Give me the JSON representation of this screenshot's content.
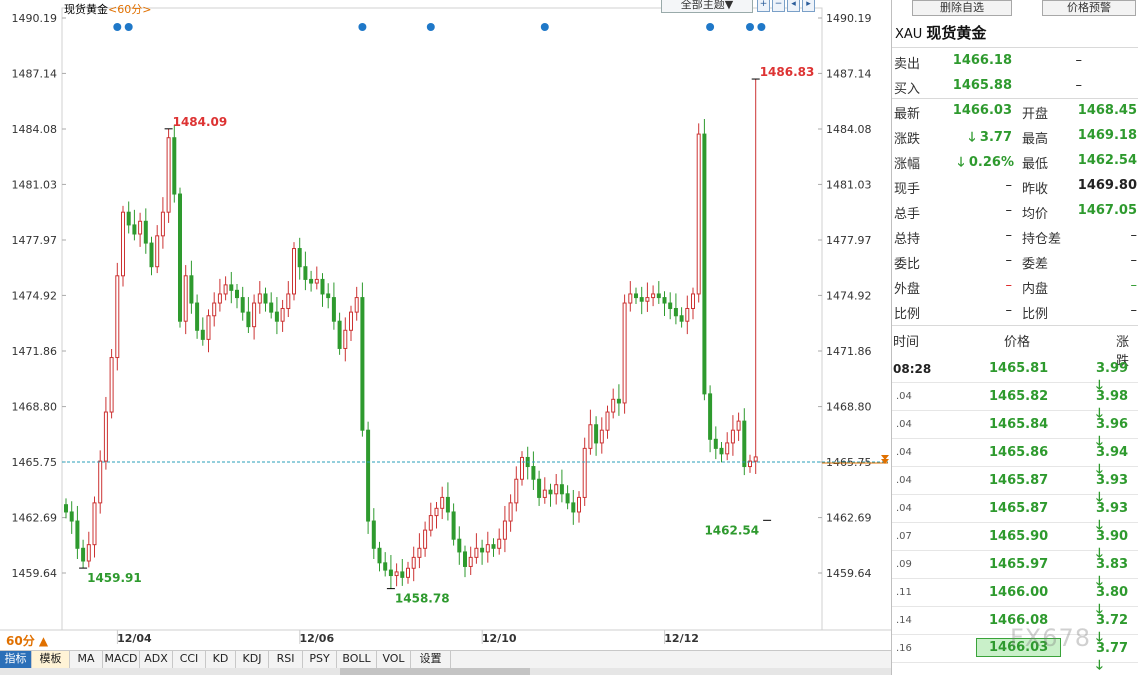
{
  "header": {
    "symbol_name": "现货黄金",
    "period_label": "<60分>",
    "theme_button": "全部主题▼",
    "toolbar_icons": [
      "plus-icon",
      "minus-icon",
      "left-icon",
      "right-icon"
    ]
  },
  "footer": {
    "period_selector": "60分 ▲",
    "indicator_tabs": [
      "指标",
      "模板",
      "MA",
      "MACD",
      "ADX",
      "CCI",
      "KD",
      "KDJ",
      "RSI",
      "PSY",
      "BOLL",
      "VOL",
      "设置"
    ]
  },
  "chart_data": {
    "type": "candlestick",
    "y_ticks": [
      "1490.19",
      "1487.14",
      "1484.08",
      "1481.03",
      "1477.97",
      "1474.92",
      "1471.86",
      "1468.80",
      "1465.75",
      "1462.69",
      "1459.64"
    ],
    "ylim": [
      1457.8,
      1490.6
    ],
    "x_labels": [
      {
        "label": "12/04",
        "index": 12
      },
      {
        "label": "12/06",
        "index": 44
      },
      {
        "label": "12/10",
        "index": 76
      },
      {
        "label": "12/12",
        "index": 108
      }
    ],
    "annotations": [
      {
        "text": "1484.09",
        "index": 18,
        "value": 1484.09,
        "color": "#d33"
      },
      {
        "text": "1459.91",
        "index": 3,
        "value": 1459.91,
        "color": "#2e9a2e"
      },
      {
        "text": "1458.78",
        "index": 57,
        "value": 1458.78,
        "color": "#2e9a2e"
      },
      {
        "text": "1486.83",
        "index": 121,
        "value": 1486.83,
        "color": "#d33"
      },
      {
        "text": "1462.54",
        "index": 123,
        "value": 1462.54,
        "color": "#2e9a2e"
      }
    ],
    "current_price": "1465.75",
    "event_markers": [
      9,
      11,
      52,
      64,
      84,
      113,
      120,
      122
    ],
    "up_color": "#c33",
    "down_color": "#2e9a2e",
    "close_prices": [
      1463.0,
      1462.5,
      1461.0,
      1460.3,
      1461.2,
      1463.5,
      1465.8,
      1468.5,
      1471.5,
      1476.0,
      1479.5,
      1478.8,
      1478.3,
      1479.0,
      1477.8,
      1476.5,
      1478.2,
      1479.5,
      1483.6,
      1480.5,
      1473.5,
      1476.0,
      1474.5,
      1473.0,
      1472.5,
      1473.8,
      1474.5,
      1475.0,
      1475.5,
      1475.2,
      1474.8,
      1474.0,
      1473.2,
      1474.5,
      1475.0,
      1474.5,
      1474.0,
      1473.5,
      1474.2,
      1475.0,
      1477.5,
      1476.5,
      1475.8,
      1475.6,
      1475.8,
      1475.0,
      1474.8,
      1473.5,
      1472.0,
      1473.0,
      1474.0,
      1474.8,
      1467.5,
      1462.5,
      1461.0,
      1460.2,
      1459.8,
      1459.5,
      1459.7,
      1459.4,
      1459.9,
      1460.5,
      1461.0,
      1462.0,
      1462.8,
      1463.2,
      1463.8,
      1463.0,
      1461.5,
      1460.8,
      1460.0,
      1460.5,
      1461.0,
      1460.8,
      1461.2,
      1461.0,
      1461.5,
      1462.5,
      1463.5,
      1464.8,
      1466.0,
      1465.5,
      1464.8,
      1463.8,
      1464.2,
      1464.0,
      1464.5,
      1464.0,
      1463.5,
      1463.0,
      1463.8,
      1466.5,
      1467.8,
      1466.8,
      1467.5,
      1468.5,
      1469.2,
      1469.0,
      1474.5,
      1475.0,
      1474.8,
      1474.6,
      1474.8,
      1475.0,
      1474.8,
      1474.5,
      1474.2,
      1473.8,
      1473.5,
      1474.2,
      1475.0,
      1483.8,
      1469.5,
      1467.0,
      1466.5,
      1466.2,
      1466.8,
      1467.5,
      1468.0,
      1465.5,
      1465.8,
      1466.03
    ]
  },
  "quote_panel": {
    "buttons": [
      "删除自选",
      "价格预警"
    ],
    "code": "XAU",
    "name": "现货黄金",
    "sell_label": "卖出",
    "sell_value": "1466.18",
    "sell_vol": "–",
    "buy_label": "买入",
    "buy_value": "1465.88",
    "buy_vol": "–",
    "latest_label": "最新",
    "latest_value": "1466.03",
    "open_label": "开盘",
    "open_value": "1468.45",
    "change_label": "涨跌",
    "change_value": "3.77",
    "high_label": "最高",
    "high_value": "1469.18",
    "pct_label": "涨幅",
    "pct_value": "0.26%",
    "low_label": "最低",
    "low_value": "1462.54",
    "hand_label": "现手",
    "hand_value": "–",
    "prev_label": "昨收",
    "prev_value": "1469.80",
    "total_label": "总手",
    "total_value": "–",
    "avg_label": "均价",
    "avg_value": "1467.05",
    "hold_label": "总持",
    "hold_value": "–",
    "hold_diff_label": "持仓差",
    "hold_diff_value": "–",
    "ratio_label": "委比",
    "ratio_value": "–",
    "order_diff_label": "委差",
    "order_diff_value": "–",
    "outer_label": "外盘",
    "outer_value": "–",
    "inner_label": "内盘",
    "inner_value": "–",
    "prop_label": "比例",
    "prop_value": "–",
    "prop2_label": "比例",
    "prop2_value": "–"
  },
  "ticks": {
    "headers": [
      "时间",
      "价格",
      "涨跌"
    ],
    "rows": [
      {
        "time": "08:28",
        "price": "1465.81",
        "chg": "3.99"
      },
      {
        "time": ".04",
        "price": "1465.82",
        "chg": "3.98"
      },
      {
        "time": ".04",
        "price": "1465.84",
        "chg": "3.96"
      },
      {
        "time": ".04",
        "price": "1465.86",
        "chg": "3.94"
      },
      {
        "time": ".04",
        "price": "1465.87",
        "chg": "3.93"
      },
      {
        "time": ".04",
        "price": "1465.87",
        "chg": "3.93"
      },
      {
        "time": ".07",
        "price": "1465.90",
        "chg": "3.90"
      },
      {
        "time": ".09",
        "price": "1465.97",
        "chg": "3.83"
      },
      {
        "time": ".11",
        "price": "1466.00",
        "chg": "3.80"
      },
      {
        "time": ".14",
        "price": "1466.08",
        "chg": "3.72"
      },
      {
        "time": ".16",
        "price": "1466.03",
        "chg": "3.77"
      }
    ]
  },
  "watermark": "FX678"
}
